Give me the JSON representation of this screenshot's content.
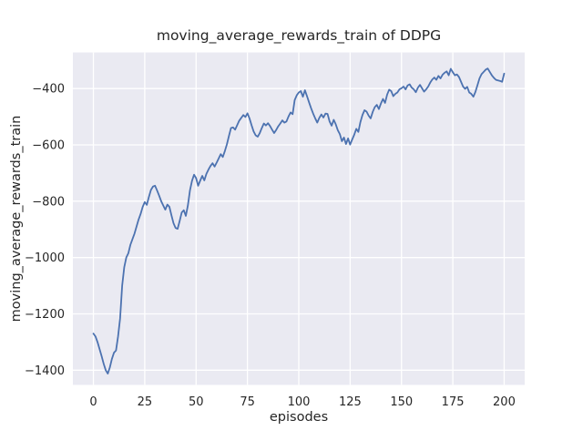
{
  "chart_data": {
    "type": "line",
    "title": "moving_average_rewards_train of DDPG",
    "xlabel": "episodes",
    "ylabel": "moving_average_rewards_train",
    "x_ticks": [
      0,
      25,
      50,
      75,
      100,
      125,
      150,
      175,
      200
    ],
    "y_ticks": [
      -400,
      -600,
      -800,
      -1000,
      -1200,
      -1400
    ],
    "xlim": [
      -10,
      210
    ],
    "ylim": [
      -1452,
      -272
    ],
    "grid": true,
    "legend_position": "none",
    "plot_bg_color": "#EAEAF2",
    "grid_color": "#FFFFFF",
    "line_color": "#4C72B0",
    "series": [
      {
        "name": "moving_average_rewards_train",
        "x_start": 0,
        "x_step": 1,
        "values": [
          -1270,
          -1280,
          -1300,
          -1325,
          -1350,
          -1377,
          -1400,
          -1412,
          -1390,
          -1360,
          -1338,
          -1330,
          -1280,
          -1216,
          -1100,
          -1035,
          -1000,
          -985,
          -955,
          -935,
          -915,
          -890,
          -865,
          -845,
          -820,
          -803,
          -813,
          -785,
          -760,
          -748,
          -745,
          -762,
          -780,
          -800,
          -815,
          -830,
          -812,
          -820,
          -850,
          -878,
          -895,
          -898,
          -870,
          -840,
          -832,
          -852,
          -815,
          -762,
          -728,
          -706,
          -718,
          -745,
          -727,
          -710,
          -726,
          -703,
          -688,
          -675,
          -665,
          -677,
          -663,
          -648,
          -633,
          -643,
          -622,
          -598,
          -568,
          -540,
          -538,
          -546,
          -530,
          -514,
          -504,
          -494,
          -501,
          -488,
          -506,
          -530,
          -552,
          -566,
          -571,
          -558,
          -540,
          -524,
          -531,
          -523,
          -533,
          -546,
          -558,
          -547,
          -534,
          -524,
          -513,
          -521,
          -517,
          -499,
          -485,
          -491,
          -441,
          -424,
          -414,
          -409,
          -429,
          -406,
          -427,
          -449,
          -470,
          -489,
          -506,
          -521,
          -504,
          -492,
          -503,
          -489,
          -490,
          -517,
          -532,
          -511,
          -527,
          -548,
          -562,
          -587,
          -574,
          -597,
          -577,
          -599,
          -581,
          -564,
          -543,
          -554,
          -519,
          -494,
          -477,
          -482,
          -496,
          -506,
          -483,
          -466,
          -458,
          -473,
          -453,
          -437,
          -451,
          -422,
          -404,
          -409,
          -427,
          -419,
          -414,
          -403,
          -399,
          -393,
          -403,
          -389,
          -385,
          -397,
          -403,
          -413,
          -397,
          -387,
          -399,
          -411,
          -403,
          -393,
          -379,
          -368,
          -361,
          -369,
          -355,
          -364,
          -351,
          -344,
          -339,
          -353,
          -330,
          -342,
          -353,
          -350,
          -359,
          -376,
          -393,
          -401,
          -394,
          -414,
          -419,
          -429,
          -412,
          -388,
          -364,
          -349,
          -341,
          -333,
          -329,
          -341,
          -353,
          -362,
          -369,
          -371,
          -373,
          -376,
          -347
        ]
      }
    ]
  }
}
